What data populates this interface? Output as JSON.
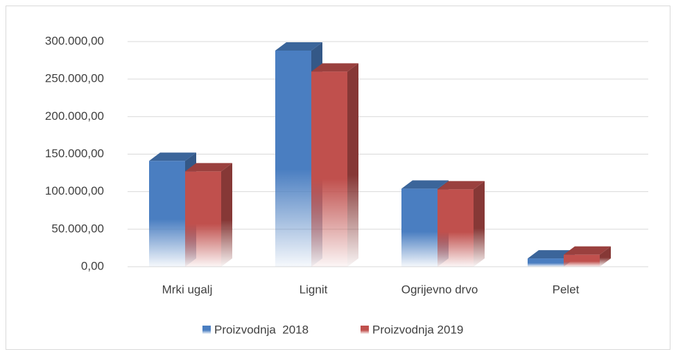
{
  "chart_data": {
    "type": "bar3d",
    "categories": [
      "Mrki ugalj",
      "Lignit",
      "Ogrijevno drvo",
      "Pelet"
    ],
    "series": [
      {
        "name": "Proizvodnja  2018",
        "color": "#4a7ec1",
        "values": [
          141000,
          288000,
          104000,
          11000
        ]
      },
      {
        "name": "Proizvodnja 2019",
        "color": "#c0504d",
        "values": [
          127000,
          260000,
          103000,
          16000
        ]
      }
    ],
    "ylim": [
      0,
      300000
    ],
    "yticks": [
      {
        "value": 0,
        "label": "0,00"
      },
      {
        "value": 50000,
        "label": "50.000,00"
      },
      {
        "value": 100000,
        "label": "100.000,00"
      },
      {
        "value": 150000,
        "label": "150.000,00"
      },
      {
        "value": 200000,
        "label": "200.000,00"
      },
      {
        "value": 250000,
        "label": "250.000,00"
      },
      {
        "value": 300000,
        "label": "300.000,00"
      }
    ],
    "grid": true,
    "legend": "bottom"
  }
}
